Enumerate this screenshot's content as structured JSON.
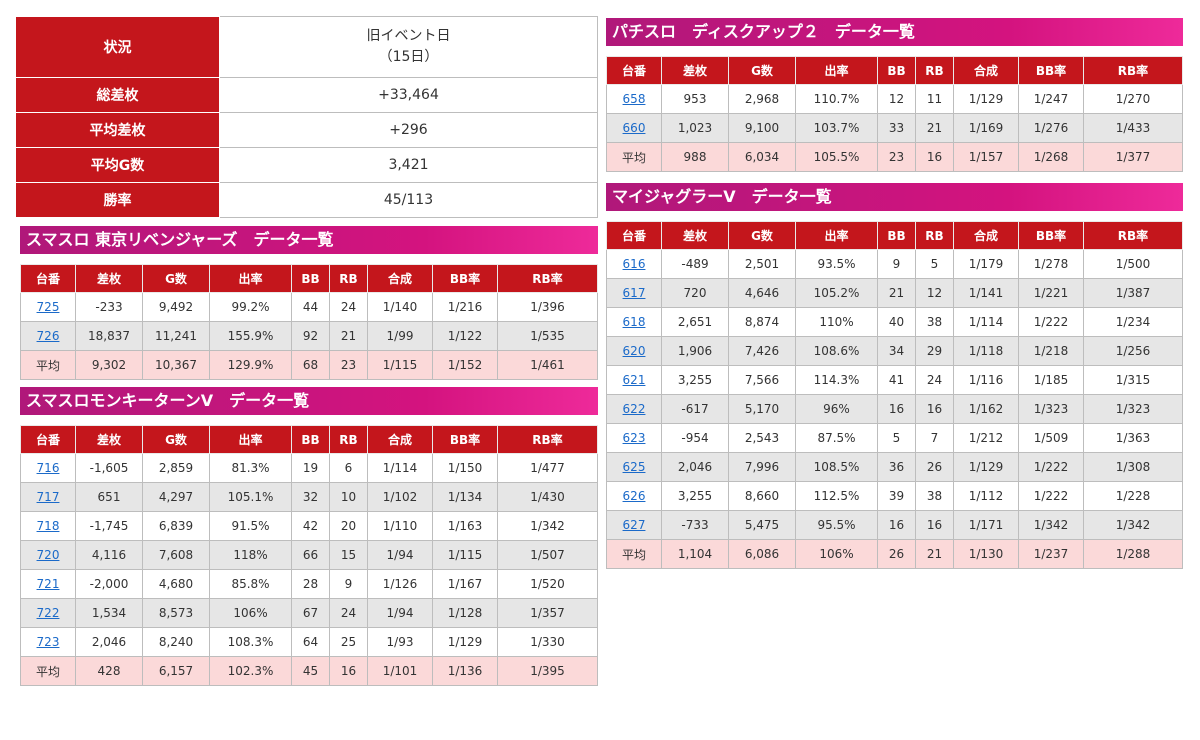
{
  "summary": {
    "rows": [
      {
        "label": "状況",
        "value_line1": "旧イベント日",
        "value_line2": "（15日）"
      },
      {
        "label": "総差枚",
        "value": "+33,464"
      },
      {
        "label": "平均差枚",
        "value": "+296"
      },
      {
        "label": "平均G数",
        "value": "3,421"
      },
      {
        "label": "勝率",
        "value": "45/113"
      }
    ]
  },
  "columns": [
    "台番",
    "差枚",
    "G数",
    "出率",
    "BB",
    "RB",
    "合成",
    "BB率",
    "RB率"
  ],
  "colors": {
    "header_red": "#c4161c",
    "section_gradient_start": "#b0187a",
    "section_gradient_end": "#ee2a9a",
    "average_row": "#fbd9d9",
    "alt_row": "#e6e6e6",
    "link": "#1b6ac9"
  },
  "sections": [
    {
      "title": "スマスロ 東京リベンジャーズ　データ一覧",
      "rows": [
        [
          "725",
          "-233",
          "9,492",
          "99.2%",
          "44",
          "24",
          "1/140",
          "1/216",
          "1/396"
        ],
        [
          "726",
          "18,837",
          "11,241",
          "155.9%",
          "92",
          "21",
          "1/99",
          "1/122",
          "1/535"
        ]
      ],
      "average": [
        "平均",
        "9,302",
        "10,367",
        "129.9%",
        "68",
        "23",
        "1/115",
        "1/152",
        "1/461"
      ]
    },
    {
      "title": "スマスロモンキーターンV　データ一覧",
      "rows": [
        [
          "716",
          "-1,605",
          "2,859",
          "81.3%",
          "19",
          "6",
          "1/114",
          "1/150",
          "1/477"
        ],
        [
          "717",
          "651",
          "4,297",
          "105.1%",
          "32",
          "10",
          "1/102",
          "1/134",
          "1/430"
        ],
        [
          "718",
          "-1,745",
          "6,839",
          "91.5%",
          "42",
          "20",
          "1/110",
          "1/163",
          "1/342"
        ],
        [
          "720",
          "4,116",
          "7,608",
          "118%",
          "66",
          "15",
          "1/94",
          "1/115",
          "1/507"
        ],
        [
          "721",
          "-2,000",
          "4,680",
          "85.8%",
          "28",
          "9",
          "1/126",
          "1/167",
          "1/520"
        ],
        [
          "722",
          "1,534",
          "8,573",
          "106%",
          "67",
          "24",
          "1/94",
          "1/128",
          "1/357"
        ],
        [
          "723",
          "2,046",
          "8,240",
          "108.3%",
          "64",
          "25",
          "1/93",
          "1/129",
          "1/330"
        ]
      ],
      "average": [
        "平均",
        "428",
        "6,157",
        "102.3%",
        "45",
        "16",
        "1/101",
        "1/136",
        "1/395"
      ]
    },
    {
      "title": "パチスロ　ディスクアップ２　データ一覧",
      "rows": [
        [
          "658",
          "953",
          "2,968",
          "110.7%",
          "12",
          "11",
          "1/129",
          "1/247",
          "1/270"
        ],
        [
          "660",
          "1,023",
          "9,100",
          "103.7%",
          "33",
          "21",
          "1/169",
          "1/276",
          "1/433"
        ]
      ],
      "average": [
        "平均",
        "988",
        "6,034",
        "105.5%",
        "23",
        "16",
        "1/157",
        "1/268",
        "1/377"
      ]
    },
    {
      "title": "マイジャグラーV　データ一覧",
      "rows": [
        [
          "616",
          "-489",
          "2,501",
          "93.5%",
          "9",
          "5",
          "1/179",
          "1/278",
          "1/500"
        ],
        [
          "617",
          "720",
          "4,646",
          "105.2%",
          "21",
          "12",
          "1/141",
          "1/221",
          "1/387"
        ],
        [
          "618",
          "2,651",
          "8,874",
          "110%",
          "40",
          "38",
          "1/114",
          "1/222",
          "1/234"
        ],
        [
          "620",
          "1,906",
          "7,426",
          "108.6%",
          "34",
          "29",
          "1/118",
          "1/218",
          "1/256"
        ],
        [
          "621",
          "3,255",
          "7,566",
          "114.3%",
          "41",
          "24",
          "1/116",
          "1/185",
          "1/315"
        ],
        [
          "622",
          "-617",
          "5,170",
          "96%",
          "16",
          "16",
          "1/162",
          "1/323",
          "1/323"
        ],
        [
          "623",
          "-954",
          "2,543",
          "87.5%",
          "5",
          "7",
          "1/212",
          "1/509",
          "1/363"
        ],
        [
          "625",
          "2,046",
          "7,996",
          "108.5%",
          "36",
          "26",
          "1/129",
          "1/222",
          "1/308"
        ],
        [
          "626",
          "3,255",
          "8,660",
          "112.5%",
          "39",
          "38",
          "1/112",
          "1/222",
          "1/228"
        ],
        [
          "627",
          "-733",
          "5,475",
          "95.5%",
          "16",
          "16",
          "1/171",
          "1/342",
          "1/342"
        ]
      ],
      "average": [
        "平均",
        "1,104",
        "6,086",
        "106%",
        "26",
        "21",
        "1/130",
        "1/237",
        "1/288"
      ]
    }
  ]
}
